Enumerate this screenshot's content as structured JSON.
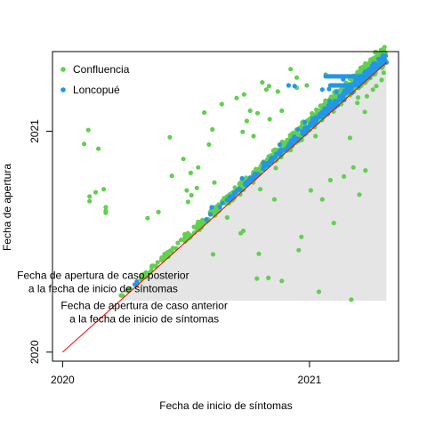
{
  "chart_data": {
    "type": "scatter",
    "xlabel": "Fecha de inicio de síntomas",
    "ylabel": "Fecha de apertura",
    "xlim": [
      "2019-12-17",
      "2021-05-13"
    ],
    "ylim": [
      "2019-12-17",
      "2021-05-13"
    ],
    "x_ticks": [
      {
        "value": "2020-01-01",
        "label": "2020"
      },
      {
        "value": "2021-01-01",
        "label": "2021"
      }
    ],
    "y_ticks": [
      {
        "value": "2020-01-01",
        "label": "2020"
      },
      {
        "value": "2021-01-01",
        "label": "2021"
      }
    ],
    "grid": false,
    "legend": {
      "position": "top-left"
    },
    "shaded_region": {
      "description_points": [
        [
          "2020-03-26",
          "2020-03-26"
        ],
        [
          "2021-04-25",
          "2021-04-25"
        ],
        [
          "2021-04-25",
          "2020-03-26"
        ]
      ],
      "color": "#e5e5e5"
    },
    "reference_line": {
      "from": [
        "2020-01-01",
        "2020-01-01"
      ],
      "to": [
        "2021-04-25",
        "2021-04-25"
      ],
      "color": "#ff0000"
    },
    "annotations": [
      {
        "lines": [
          "Fecha de apertura de caso posterior",
          "a la fecha de inicio de síntomas"
        ],
        "x": "2020-03-01",
        "y": "2020-05-01"
      },
      {
        "lines": [
          "Fecha de apertura de caso anterior",
          "a la fecha de inicio de síntomas"
        ],
        "x": "2020-05-01",
        "y": "2020-03-12"
      }
    ],
    "series": [
      {
        "name": "Confluencia",
        "color": "#61d04f",
        "points": [
          [
            "2020-02-08",
            "2021-01-03"
          ],
          [
            "2020-02-02",
            "2020-12-11"
          ],
          [
            "2020-02-10",
            "2020-09-07"
          ],
          [
            "2020-02-10",
            "2020-09-15"
          ],
          [
            "2020-02-19",
            "2020-09-22"
          ],
          [
            "2020-03-05",
            "2020-08-28"
          ],
          [
            "2020-03-05",
            "2020-08-22"
          ],
          [
            "2020-03-05",
            "2020-08-19"
          ],
          [
            "2020-02-23",
            "2020-12-03"
          ],
          [
            "2020-03-02",
            "2020-09-27"
          ],
          [
            "2020-05-22",
            "2020-08-20"
          ],
          [
            "2020-07-10",
            "2020-09-17"
          ],
          [
            "2020-08-11",
            "2020-06-11"
          ],
          [
            "2020-07-05",
            "2020-09-06"
          ],
          [
            "2020-09-21",
            "2020-07-16"
          ],
          [
            "2020-11-01",
            "2020-05-03"
          ],
          [
            "2020-10-18",
            "2020-06-12"
          ],
          [
            "2020-11-21",
            "2020-04-28"
          ],
          [
            "2020-12-16",
            "2020-06-18"
          ],
          [
            "2021-01-03",
            "2020-09-25"
          ],
          [
            "2021-01-20",
            "2020-09-10"
          ],
          [
            "2021-02-06",
            "2020-08-02"
          ],
          [
            "2021-02-01",
            "2020-10-12"
          ],
          [
            "2021-03-16",
            "2020-09-18"
          ],
          [
            "2021-02-21",
            "2020-10-18"
          ],
          [
            "2021-03-25",
            "2020-10-28"
          ],
          [
            "2021-03-07",
            "2020-11-02"
          ],
          [
            "2021-03-02",
            "2020-12-21"
          ],
          [
            "2021-01-15",
            "2020-04-10"
          ],
          [
            "2021-03-04",
            "2020-03-28"
          ],
          [
            "2020-12-20",
            "2020-07-10"
          ],
          [
            "2020-10-15",
            "2020-05-02"
          ],
          [
            "2020-11-10",
            "2020-09-10"
          ],
          [
            "2020-09-01",
            "2020-08-11"
          ],
          [
            "2020-09-25",
            "2020-07-20"
          ],
          [
            "2021-02-17",
            "2021-02-15"
          ],
          [
            "2021-03-13",
            "2021-02-17"
          ],
          [
            "2021-03-24",
            "2021-02-02"
          ],
          [
            "2021-03-14",
            "2021-02-26"
          ],
          [
            "2021-03-27",
            "2021-02-28"
          ],
          [
            "2021-04-05",
            "2021-03-11"
          ],
          [
            "2021-04-10",
            "2021-03-17"
          ],
          [
            "2021-04-18",
            "2021-03-27"
          ],
          [
            "2021-04-21",
            "2021-04-08"
          ],
          [
            "2020-06-08",
            "2020-12-22"
          ],
          [
            "2020-07-29",
            "2021-02-01"
          ],
          [
            "2020-08-24",
            "2021-02-15"
          ],
          [
            "2020-09-15",
            "2021-02-25"
          ],
          [
            "2020-09-26",
            "2021-03-03"
          ],
          [
            "2020-10-23",
            "2021-03-23"
          ],
          [
            "2020-11-02",
            "2021-03-17"
          ],
          [
            "2020-11-15",
            "2021-03-08"
          ],
          [
            "2020-12-04",
            "2021-04-14"
          ],
          [
            "2020-12-13",
            "2021-03-31"
          ],
          [
            "2020-10-05",
            "2021-02-04"
          ],
          [
            "2020-08-05",
            "2020-12-10"
          ],
          [
            "2020-06-28",
            "2020-11-16"
          ],
          [
            "2020-07-09",
            "2020-10-24"
          ],
          [
            "2020-07-20",
            "2020-11-02"
          ],
          [
            "2020-08-10",
            "2021-01-04"
          ],
          [
            "2020-11-03",
            "2021-01-21"
          ],
          [
            "2020-11-21",
            "2021-02-04"
          ],
          [
            "2020-12-13",
            "2021-03-14"
          ],
          [
            "2020-12-28",
            "2021-03-18"
          ],
          [
            "2021-01-25",
            "2021-04-05"
          ],
          [
            "2020-10-29",
            "2021-03-11"
          ],
          [
            "2020-09-24",
            "2020-12-31"
          ],
          [
            "2020-09-30",
            "2021-01-18"
          ],
          [
            "2020-10-16",
            "2021-01-31"
          ],
          [
            "2020-10-10",
            "2020-12-24"
          ],
          [
            "2020-06-11",
            "2020-10-19"
          ],
          [
            "2020-05-06",
            "2020-08-10"
          ],
          [
            "2020-07-03",
            "2020-09-25"
          ],
          [
            "2020-07-18",
            "2020-09-29"
          ],
          [
            "2020-08-13",
            "2020-10-08"
          ],
          [
            "2020-11-12",
            "2020-11-01"
          ],
          [
            "2020-10-20",
            "2020-09-27"
          ],
          [
            "2020-12-04",
            "2020-12-01"
          ],
          [
            "2021-01-10",
            "2020-12-24"
          ]
        ]
      },
      {
        "name": "Loncopué",
        "color": "#2297e6",
        "points": [
          [
            "2020-04-17",
            "2020-04-22"
          ],
          [
            "2020-04-20",
            "2020-04-27"
          ],
          [
            "2020-08-09",
            "2020-08-28"
          ],
          [
            "2020-08-25",
            "2020-09-04"
          ],
          [
            "2020-09-23",
            "2020-10-15"
          ],
          [
            "2020-10-12",
            "2020-10-22"
          ],
          [
            "2020-10-25",
            "2020-11-10"
          ],
          [
            "2020-11-18",
            "2020-12-10"
          ],
          [
            "2020-11-28",
            "2020-12-03"
          ],
          [
            "2020-12-15",
            "2021-01-04"
          ],
          [
            "2020-12-25",
            "2021-01-16"
          ],
          [
            "2021-01-06",
            "2021-01-22"
          ],
          [
            "2021-01-20",
            "2021-02-02"
          ],
          [
            "2021-01-31",
            "2021-02-20"
          ],
          [
            "2021-02-10",
            "2021-03-07"
          ],
          [
            "2021-02-22",
            "2021-03-06"
          ],
          [
            "2021-02-28",
            "2021-03-18"
          ],
          [
            "2021-03-12",
            "2021-03-28"
          ],
          [
            "2021-03-25",
            "2021-04-10"
          ],
          [
            "2021-04-10",
            "2021-04-21"
          ],
          [
            "2021-04-20",
            "2021-04-23"
          ],
          [
            "2020-12-01",
            "2021-03-18"
          ],
          [
            "2020-12-10",
            "2021-03-17"
          ],
          [
            "2021-01-30",
            "2021-03-12"
          ],
          [
            "2021-02-20",
            "2021-03-28"
          ],
          [
            "2021-02-06",
            "2021-03-18"
          ],
          [
            "2021-02-13",
            "2021-03-18"
          ],
          [
            "2021-01-20",
            "2021-03-11"
          ]
        ]
      }
    ],
    "bands": [
      {
        "series": "Confluencia",
        "from": [
          "2020-03-26",
          "2020-03-28"
        ],
        "to": [
          "2021-04-25",
          "2021-04-28"
        ],
        "spread_days": 12
      },
      {
        "series": "Loncopué",
        "from": [
          "2020-07-20",
          "2020-07-26"
        ],
        "to": [
          "2021-04-25",
          "2021-04-28"
        ],
        "spread_days": 6
      }
    ]
  }
}
